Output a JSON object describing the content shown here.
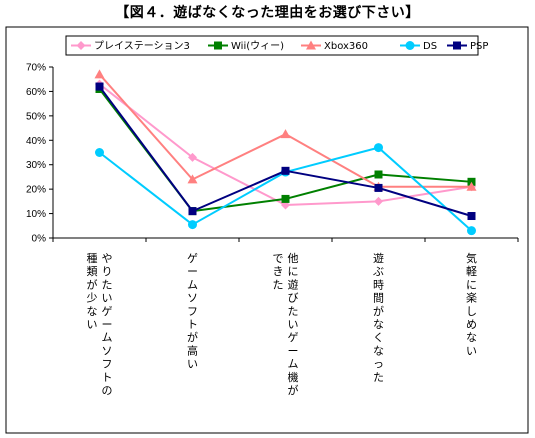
{
  "title": "【図４．遊ばなくなった理由をお選び下さい】",
  "chart_data": {
    "type": "line",
    "title": "【図４．遊ばなくなった理由をお選び下さい】",
    "xlabel": "",
    "ylabel": "",
    "ylim": [
      0,
      70
    ],
    "yticks": [
      "0%",
      "10%",
      "20%",
      "30%",
      "40%",
      "50%",
      "60%",
      "70%"
    ],
    "grid": false,
    "legend_position": "top",
    "categories": [
      "やりたいゲームソフトの種類が少ない",
      "ゲームソフトが高い",
      "他に遊びたいゲーム機ができた",
      "遊ぶ時間がなくなった",
      "気軽に楽しめない"
    ],
    "category_columns": [
      [
        "やりたいゲームソフトの",
        "種類が少ない"
      ],
      [
        "ゲームソフトが高い"
      ],
      [
        "他に遊びたいゲーム機が",
        "できた"
      ],
      [
        "遊ぶ時間がなくなった"
      ],
      [
        "気軽に楽しめない"
      ]
    ],
    "series": [
      {
        "name": "プレイステーション3",
        "color": "#FF99CC",
        "marker": "diamond",
        "values": [
          63,
          33,
          13.5,
          15,
          21
        ]
      },
      {
        "name": "Wii(ウィー)",
        "color": "#008000",
        "marker": "square",
        "values": [
          61,
          11,
          16,
          26,
          23
        ]
      },
      {
        "name": "Xbox360",
        "color": "#FF8080",
        "marker": "triangle",
        "values": [
          67,
          24,
          42.5,
          21,
          21
        ]
      },
      {
        "name": "DS",
        "color": "#00CCFF",
        "marker": "circle",
        "values": [
          35,
          5.5,
          27,
          37,
          3
        ]
      },
      {
        "name": "PSP",
        "color": "#000080",
        "marker": "square",
        "values": [
          62,
          11,
          27.5,
          20.5,
          9
        ]
      }
    ]
  }
}
